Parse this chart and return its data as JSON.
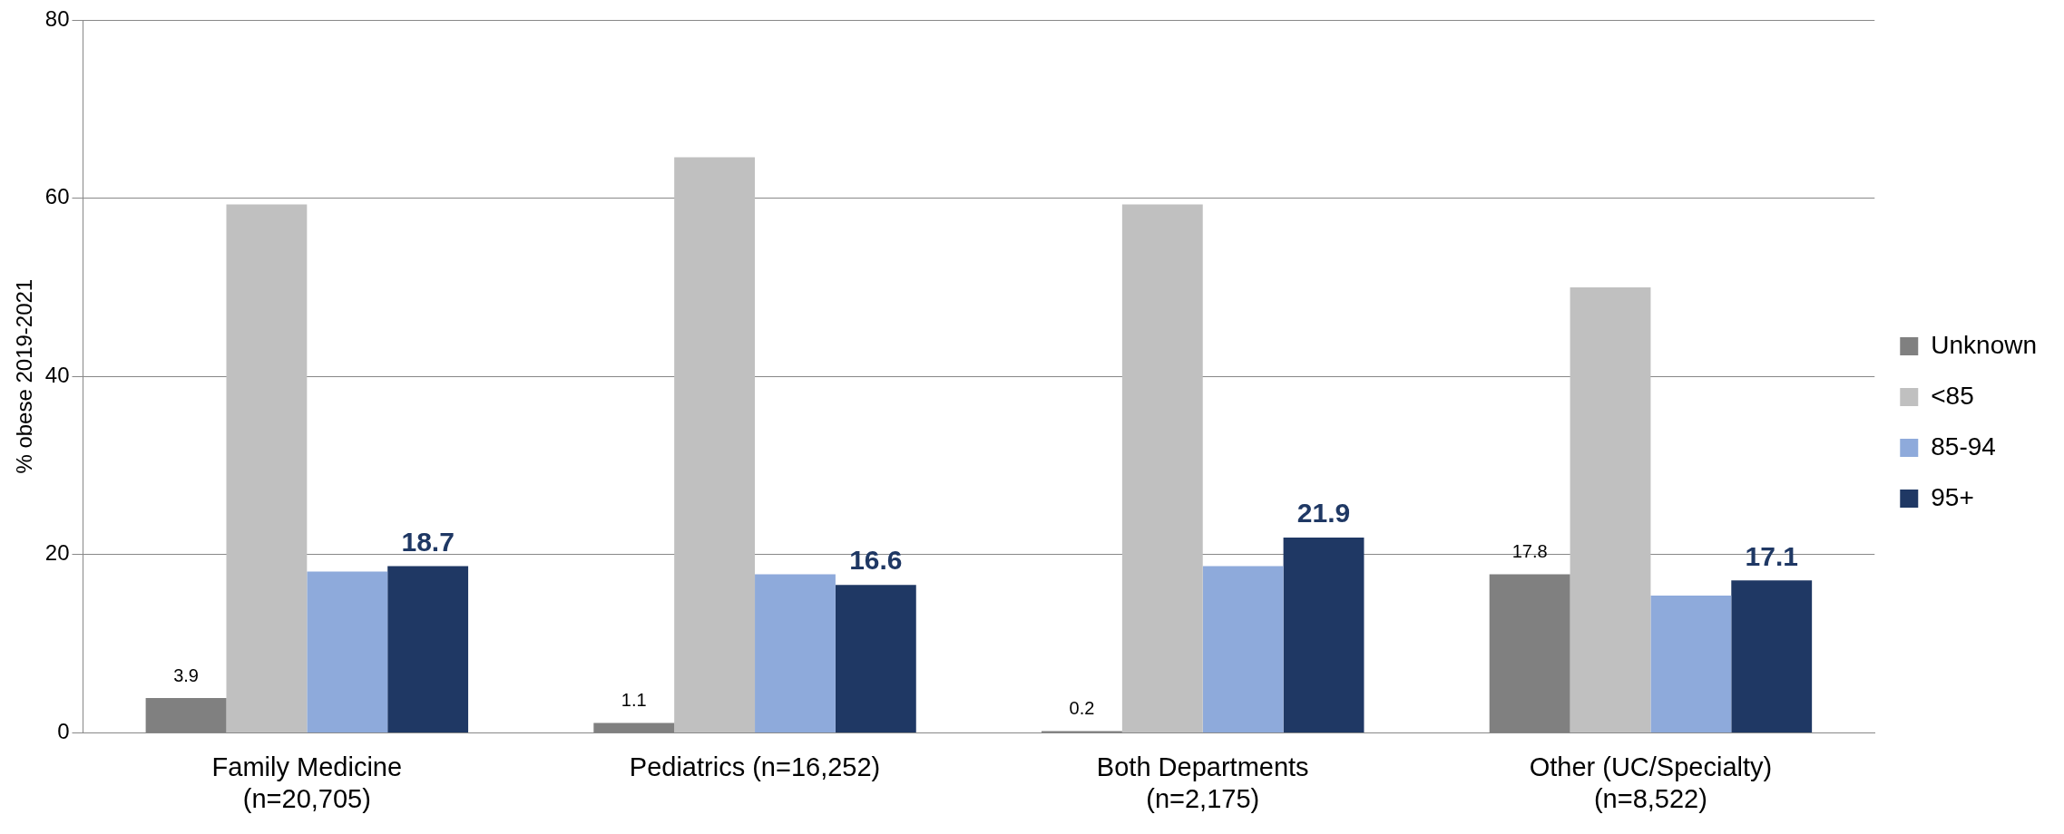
{
  "chart_data": {
    "type": "bar",
    "ylabel": "% obese 2019-2021",
    "categories": [
      "Family Medicine\n(n=20,705)",
      "Pediatrics (n=16,252)",
      "Both Departments\n(n=2,175)",
      "Other (UC/Specialty)\n(n=8,522)"
    ],
    "series": [
      {
        "name": "Unknown",
        "color": "#808080",
        "values": [
          3.9,
          1.1,
          0.2,
          17.8
        ],
        "value_labels": [
          "3.9",
          "1.1",
          "0.2",
          "17.8"
        ]
      },
      {
        "name": "<85",
        "color": "#c0c0c0",
        "values": [
          59.3,
          64.6,
          59.3,
          50.0
        ]
      },
      {
        "name": "85-94",
        "color": "#8eaadb",
        "values": [
          18.1,
          17.8,
          18.7,
          15.4
        ]
      },
      {
        "name": "95+",
        "color": "#1f3864",
        "values": [
          18.7,
          16.6,
          21.9,
          17.1
        ],
        "value_labels": [
          "18.7",
          "16.6",
          "21.9",
          "17.1"
        ]
      }
    ],
    "ylim": [
      0,
      80
    ],
    "yticks": [
      0,
      20,
      40,
      60,
      80
    ],
    "grid": "y",
    "legend": "right"
  }
}
